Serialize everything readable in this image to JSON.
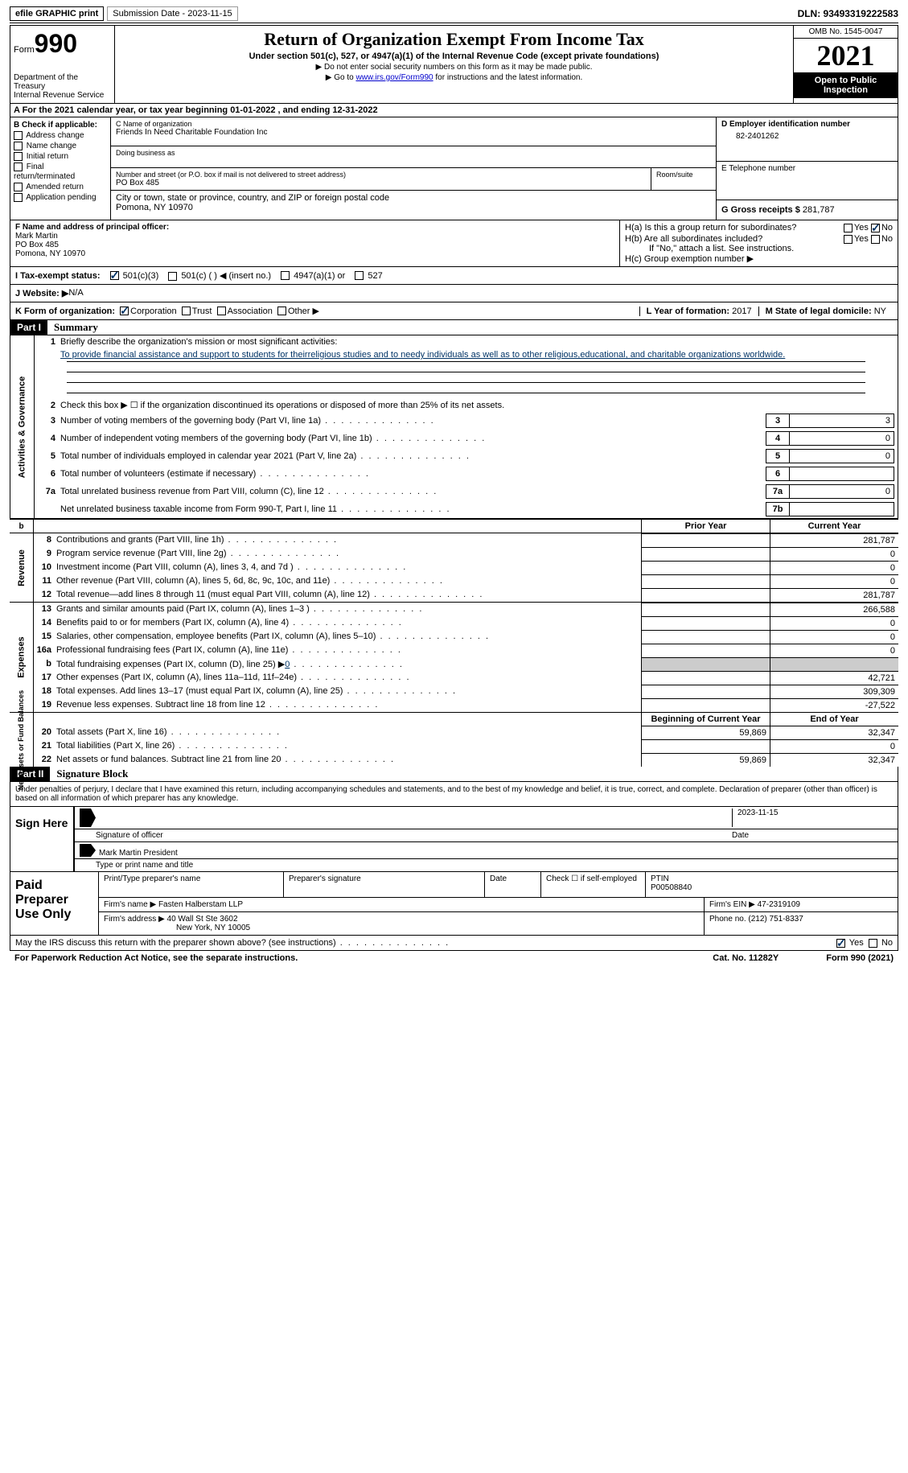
{
  "top": {
    "efile": "efile GRAPHIC print",
    "submission": "Submission Date - 2023-11-15",
    "dln": "DLN: 93493319222583"
  },
  "header": {
    "form_word": "Form",
    "form_num": "990",
    "dept": "Department of the Treasury",
    "irs": "Internal Revenue Service",
    "title": "Return of Organization Exempt From Income Tax",
    "subtitle": "Under section 501(c), 527, or 4947(a)(1) of the Internal Revenue Code (except private foundations)",
    "warn": "▶ Do not enter social security numbers on this form as it may be made public.",
    "goto_pre": "▶ Go to ",
    "goto_link": "www.irs.gov/Form990",
    "goto_post": " for instructions and the latest information.",
    "omb": "OMB No. 1545-0047",
    "year": "2021",
    "open": "Open to Public Inspection"
  },
  "section_a": "A  For the 2021 calendar year, or tax year beginning 01-01-2022    , and ending 12-31-2022",
  "box_b": {
    "label": "B Check if applicable:",
    "items": [
      "Address change",
      "Name change",
      "Initial return",
      "Final return/terminated",
      "Amended return",
      "Application pending"
    ]
  },
  "box_c": {
    "name_label": "C Name of organization",
    "name": "Friends In Need Charitable Foundation Inc",
    "dba_label": "Doing business as",
    "addr_label": "Number and street (or P.O. box if mail is not delivered to street address)",
    "addr": "PO Box 485",
    "room_label": "Room/suite",
    "city_label": "City or town, state or province, country, and ZIP or foreign postal code",
    "city": "Pomona, NY  10970"
  },
  "box_d": {
    "label": "D Employer identification number",
    "ein": "82-2401262",
    "e_label": "E Telephone number",
    "g_label": "G Gross receipts $",
    "g_val": "281,787"
  },
  "box_f": {
    "label": "F  Name and address of principal officer:",
    "name": "Mark Martin",
    "addr1": "PO Box 485",
    "addr2": "Pomona, NY  10970"
  },
  "box_h": {
    "ha_label": "H(a)  Is this a group return for subordinates?",
    "hb_label": "H(b)  Are all subordinates included?",
    "hb_note": "If \"No,\" attach a list. See instructions.",
    "hc_label": "H(c)  Group exemption number ▶",
    "yes": "Yes",
    "no": "No"
  },
  "box_i": {
    "label": "I   Tax-exempt status:",
    "opt1": "501(c)(3)",
    "opt2": "501(c) (  ) ◀ (insert no.)",
    "opt3": "4947(a)(1) or",
    "opt4": "527"
  },
  "box_j": {
    "label": "J   Website: ▶",
    "val": "  N/A"
  },
  "box_k": {
    "label": "K Form of organization:",
    "opts": [
      "Corporation",
      "Trust",
      "Association",
      "Other ▶"
    ],
    "l_label": "L Year of formation:",
    "l_val": "2017",
    "m_label": "M State of legal domicile:",
    "m_val": "NY"
  },
  "parts": {
    "p1": "Part I",
    "p1_title": "Summary",
    "p2": "Part II",
    "p2_title": "Signature Block"
  },
  "summary": {
    "line1_label": "Briefly describe the organization's mission or most significant activities:",
    "mission": "To provide financial assistance and support to students for theirreligious studies and to needy individuals as well as to other religious,educational, and charitable organizations worldwide.",
    "line2": "Check this box ▶ ☐  if the organization discontinued its operations or disposed of more than 25% of its net assets.",
    "sides": {
      "gov": "Activities & Governance",
      "rev": "Revenue",
      "exp": "Expenses",
      "net": "Net Assets or Fund Balances"
    },
    "rows_gov": [
      {
        "n": "3",
        "t": "Number of voting members of the governing body (Part VI, line 1a)",
        "box": "3",
        "v": "3"
      },
      {
        "n": "4",
        "t": "Number of independent voting members of the governing body (Part VI, line 1b)",
        "box": "4",
        "v": "0"
      },
      {
        "n": "5",
        "t": "Total number of individuals employed in calendar year 2021 (Part V, line 2a)",
        "box": "5",
        "v": "0"
      },
      {
        "n": "6",
        "t": "Total number of volunteers (estimate if necessary)",
        "box": "6",
        "v": ""
      },
      {
        "n": "7a",
        "t": "Total unrelated business revenue from Part VIII, column (C), line 12",
        "box": "7a",
        "v": "0"
      },
      {
        "n": "",
        "t": "Net unrelated business taxable income from Form 990-T, Part I, line 11",
        "box": "7b",
        "v": ""
      }
    ],
    "col_headers": {
      "prior": "Prior Year",
      "curr": "Current Year",
      "begin": "Beginning of Current Year",
      "end": "End of Year",
      "b": "b"
    },
    "rows_rev": [
      {
        "n": "8",
        "t": "Contributions and grants (Part VIII, line 1h)",
        "p": "",
        "c": "281,787"
      },
      {
        "n": "9",
        "t": "Program service revenue (Part VIII, line 2g)",
        "p": "",
        "c": "0"
      },
      {
        "n": "10",
        "t": "Investment income (Part VIII, column (A), lines 3, 4, and 7d )",
        "p": "",
        "c": "0"
      },
      {
        "n": "11",
        "t": "Other revenue (Part VIII, column (A), lines 5, 6d, 8c, 9c, 10c, and 11e)",
        "p": "",
        "c": "0"
      },
      {
        "n": "12",
        "t": "Total revenue—add lines 8 through 11 (must equal Part VIII, column (A), line 12)",
        "p": "",
        "c": "281,787"
      }
    ],
    "rows_exp": [
      {
        "n": "13",
        "t": "Grants and similar amounts paid (Part IX, column (A), lines 1–3 )",
        "p": "",
        "c": "266,588"
      },
      {
        "n": "14",
        "t": "Benefits paid to or for members (Part IX, column (A), line 4)",
        "p": "",
        "c": "0"
      },
      {
        "n": "15",
        "t": "Salaries, other compensation, employee benefits (Part IX, column (A), lines 5–10)",
        "p": "",
        "c": "0"
      },
      {
        "n": "16a",
        "t": "Professional fundraising fees (Part IX, column (A), line 11e)",
        "p": "",
        "c": "0"
      },
      {
        "n": "b",
        "t": "Total fundraising expenses (Part IX, column (D), line 25) ▶",
        "p": "shaded",
        "c": "shaded",
        "extra": "0"
      },
      {
        "n": "17",
        "t": "Other expenses (Part IX, column (A), lines 11a–11d, 11f–24e)",
        "p": "",
        "c": "42,721"
      },
      {
        "n": "18",
        "t": "Total expenses. Add lines 13–17 (must equal Part IX, column (A), line 25)",
        "p": "",
        "c": "309,309"
      },
      {
        "n": "19",
        "t": "Revenue less expenses. Subtract line 18 from line 12",
        "p": "",
        "c": "-27,522"
      }
    ],
    "rows_net": [
      {
        "n": "20",
        "t": "Total assets (Part X, line 16)",
        "p": "59,869",
        "c": "32,347"
      },
      {
        "n": "21",
        "t": "Total liabilities (Part X, line 26)",
        "p": "",
        "c": "0"
      },
      {
        "n": "22",
        "t": "Net assets or fund balances. Subtract line 21 from line 20",
        "p": "59,869",
        "c": "32,347"
      }
    ]
  },
  "sig": {
    "penalty": "Under penalties of perjury, I declare that I have examined this return, including accompanying schedules and statements, and to the best of my knowledge and belief, it is true, correct, and complete. Declaration of preparer (other than officer) is based on all information of which preparer has any knowledge.",
    "sign_here": "Sign Here",
    "sig_officer": "Signature of officer",
    "date": "Date",
    "date_val": "2023-11-15",
    "name_title": "Mark Martin  President",
    "name_label": "Type or print name and title",
    "paid": "Paid Preparer Use Only",
    "prep_name_label": "Print/Type preparer's name",
    "prep_sig_label": "Preparer's signature",
    "check_self": "Check ☐ if self-employed",
    "ptin_label": "PTIN",
    "ptin": "P00508840",
    "firm_name_label": "Firm's name    ▶",
    "firm_name": "Fasten Halberstam LLP",
    "firm_ein_label": "Firm's EIN ▶",
    "firm_ein": "47-2319109",
    "firm_addr_label": "Firm's address ▶",
    "firm_addr1": "40 Wall St Ste 3602",
    "firm_addr2": "New York, NY  10005",
    "phone_label": "Phone no.",
    "phone": "(212) 751-8337",
    "discuss": "May the IRS discuss this return with the preparer shown above? (see instructions)"
  },
  "footer": {
    "pra": "For Paperwork Reduction Act Notice, see the separate instructions.",
    "cat": "Cat. No. 11282Y",
    "form": "Form 990 (2021)"
  }
}
